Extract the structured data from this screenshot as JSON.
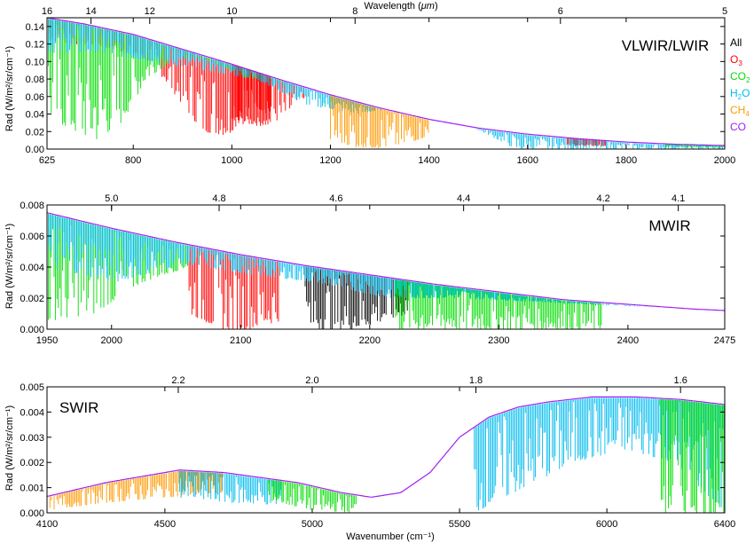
{
  "figure": {
    "top_axis_title_prefix": "Wavelength (",
    "top_axis_title_unit": "μm",
    "top_axis_title_suffix": ")",
    "bottom_axis_title": "Wavenumber (cm⁻¹)",
    "y_axis_title": "Rad (W/m²/sr/cm⁻¹)"
  },
  "legend": {
    "items": [
      {
        "label": "All",
        "base": "All",
        "sub": "",
        "color": "#000000"
      },
      {
        "label": "O3",
        "base": "O",
        "sub": "3",
        "color": "#ff0000"
      },
      {
        "label": "CO2",
        "base": "CO",
        "sub": "2",
        "color": "#00dd00"
      },
      {
        "label": "H2O",
        "base": "H",
        "sub": "2",
        "tail": "O",
        "color": "#00bbee"
      },
      {
        "label": "CH4",
        "base": "CH",
        "sub": "4",
        "color": "#ff9900"
      },
      {
        "label": "CO",
        "base": "CO",
        "sub": "",
        "color": "#a020f0"
      }
    ]
  },
  "chart_data": [
    {
      "type": "line",
      "panel": "VLWIR/LWIR",
      "xlabel": "",
      "ylabel": "Rad (W/m²/sr/cm⁻¹)",
      "xlim": [
        625,
        2000
      ],
      "ylim": [
        0,
        0.15
      ],
      "x_ticks": [
        625,
        800,
        1000,
        1200,
        1400,
        1600,
        1800,
        2000
      ],
      "y_ticks": [
        0.0,
        0.02,
        0.04,
        0.06,
        0.08,
        0.1,
        0.12,
        0.14
      ],
      "y_tick_labels": [
        "0.00",
        "0.02",
        "0.04",
        "0.06",
        "0.08",
        "0.10",
        "0.12",
        "0.14"
      ],
      "top_ticks": [
        16,
        14,
        12,
        10,
        8,
        6,
        5
      ],
      "grid": false,
      "envelope": {
        "x": [
          625,
          700,
          800,
          900,
          1000,
          1100,
          1200,
          1300,
          1400,
          1500,
          1600,
          1700,
          1800,
          1900,
          2000
        ],
        "y": [
          0.15,
          0.143,
          0.131,
          0.114,
          0.097,
          0.079,
          0.062,
          0.047,
          0.034,
          0.024,
          0.017,
          0.012,
          0.008,
          0.0055,
          0.004
        ]
      },
      "series": [
        {
          "name": "O3",
          "band": [
            625,
            1150
          ],
          "min": [
            0.125,
            0.12,
            0.118,
            0.11,
            0.1,
            0.06,
            0.02,
            0.015,
            0.05,
            0.03,
            0.06
          ],
          "spot": [
            [
              1000,
              1080,
              0.01
            ],
            [
              1680,
              1760,
              0.0025
            ]
          ]
        },
        {
          "name": "CO2",
          "band": [
            625,
            1130
          ],
          "min": [
            0.04,
            0.02,
            0.01,
            0.03,
            0.08,
            0.1,
            0.105,
            0.095,
            0.08,
            0.08,
            0.07
          ],
          "spot": [
            [
              1880,
              2000,
              0.002
            ]
          ]
        },
        {
          "name": "H2O",
          "band": [
            625,
            2000
          ],
          "min": [
            0.11,
            0.11,
            0.1,
            0.09,
            0.08,
            0.05,
            0.04,
            0.05,
            0.03,
            0.0,
            0.0,
            0.0,
            0.0,
            0.0
          ]
        },
        {
          "name": "CH4",
          "band": [
            1200,
            1400
          ],
          "min": [
            0.01,
            0.002,
            0.001,
            0.005,
            0.015
          ]
        },
        {
          "name": "CO",
          "band": [
            625,
            2000
          ],
          "min": []
        }
      ]
    },
    {
      "type": "line",
      "panel": "MWIR",
      "xlabel": "",
      "ylabel": "Rad (W/m²/sr/cm⁻¹)",
      "xlim": [
        1950,
        2475
      ],
      "ylim": [
        0,
        0.008
      ],
      "x_ticks": [
        1950,
        2000,
        2100,
        2200,
        2300,
        2400,
        2475
      ],
      "y_ticks": [
        0.0,
        0.002,
        0.004,
        0.006,
        0.008
      ],
      "y_tick_labels": [
        "0.000",
        "0.002",
        "0.004",
        "0.006",
        "0.008"
      ],
      "top_ticks": [
        5.0,
        4.8,
        4.6,
        4.4,
        4.2,
        4.1
      ],
      "top_tick_labels": [
        "5.0",
        "4.8",
        "4.6",
        "4.4",
        "4.2",
        "4.1"
      ],
      "grid": false,
      "envelope": {
        "x": [
          1950,
          2000,
          2050,
          2100,
          2150,
          2200,
          2250,
          2300,
          2350,
          2400,
          2450,
          2475
        ],
        "y": [
          0.0075,
          0.0065,
          0.0056,
          0.0048,
          0.0041,
          0.0035,
          0.0029,
          0.0024,
          0.0019,
          0.0016,
          0.0013,
          0.0012
        ]
      },
      "series": [
        {
          "name": "CO2",
          "band": [
            1950,
            2060
          ],
          "min": [
            0.0005,
            0.001,
            0.003,
            0.004
          ]
        },
        {
          "name": "O3",
          "band": [
            2060,
            2130
          ],
          "min": [
            0.001,
            0.0,
            0.0,
            0.0005
          ]
        },
        {
          "name": "All",
          "band": [
            2150,
            2230
          ],
          "min": [
            0.0,
            0.0,
            0.001
          ]
        },
        {
          "name": "CO2",
          "band": [
            2220,
            2380
          ],
          "min": [
            0.0,
            0.0,
            0.0
          ]
        },
        {
          "name": "H2O",
          "band": [
            1950,
            2475
          ],
          "min": [
            0.004,
            0.003,
            0.0042,
            0.0035,
            0.003,
            0.002,
            0.002,
            0.0018,
            0.0016,
            0.0014,
            0.0012
          ]
        }
      ]
    },
    {
      "type": "line",
      "panel": "SWIR",
      "xlabel": "Wavenumber (cm⁻¹)",
      "ylabel": "Rad (W/m²/sr/cm⁻¹)",
      "xlim": [
        4100,
        6400
      ],
      "ylim": [
        0,
        0.005
      ],
      "x_ticks": [
        4100,
        4500,
        5000,
        5500,
        6000,
        6400
      ],
      "y_ticks": [
        0.0,
        0.001,
        0.002,
        0.003,
        0.004,
        0.005
      ],
      "y_tick_labels": [
        "0.000",
        "0.001",
        "0.002",
        "0.003",
        "0.004",
        "0.005"
      ],
      "top_ticks": [
        2.2,
        2.0,
        1.8,
        1.6
      ],
      "top_tick_labels": [
        "2.2",
        "2.0",
        "1.8",
        "1.6"
      ],
      "grid": false,
      "envelope": {
        "x": [
          4100,
          4300,
          4550,
          4700,
          4950,
          5100,
          5200,
          5300,
          5400,
          5500,
          5600,
          5700,
          5800,
          5950,
          6100,
          6250,
          6400
        ],
        "y": [
          0.00065,
          0.0012,
          0.0017,
          0.0016,
          0.0012,
          0.0008,
          0.00062,
          0.0008,
          0.0016,
          0.003,
          0.0038,
          0.0042,
          0.0044,
          0.0046,
          0.0046,
          0.0045,
          0.0043
        ]
      },
      "series": [
        {
          "name": "CH4",
          "band": [
            4100,
            4700
          ],
          "min": [
            0.0001,
            0.0004,
            0.0006,
            0.0008
          ]
        },
        {
          "name": "H2O",
          "band": [
            4550,
            4900
          ],
          "min": [
            0.0006,
            0.0004,
            0.0003
          ]
        },
        {
          "name": "CO2",
          "band": [
            4850,
            5150
          ],
          "min": [
            0.0005,
            0.0001,
            0.0
          ]
        },
        {
          "name": "H2O",
          "band": [
            5550,
            6400
          ],
          "min": [
            0.0,
            0.001,
            0.002,
            0.0025,
            0.002,
            0.0
          ]
        },
        {
          "name": "CO2",
          "band": [
            6180,
            6400
          ],
          "min": [
            0.0,
            0.0
          ]
        }
      ]
    }
  ]
}
